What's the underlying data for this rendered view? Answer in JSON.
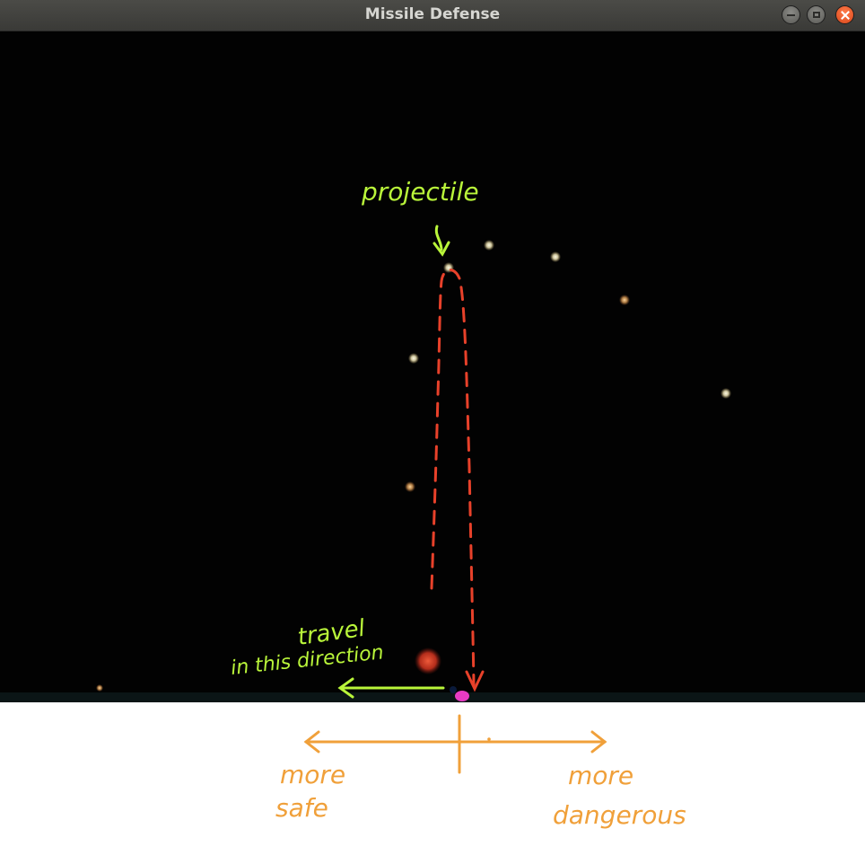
{
  "window": {
    "title": "Missile Defense"
  },
  "annotations": {
    "projectile_label": "projectile",
    "travel_label_1": "travel",
    "travel_label_2": "in this direction",
    "safe_label_1": "more",
    "safe_label_2": "safe",
    "danger_label_1": "more",
    "danger_label_2": "dangerous"
  },
  "colors": {
    "background": "#020202",
    "annotation_green": "#b9f53a",
    "annotation_red": "#e8412a",
    "annotation_orange": "#f0a03a",
    "projectile": "#f3eed0",
    "launcher": "#e83bc4",
    "obstacle": "#d33a25"
  }
}
